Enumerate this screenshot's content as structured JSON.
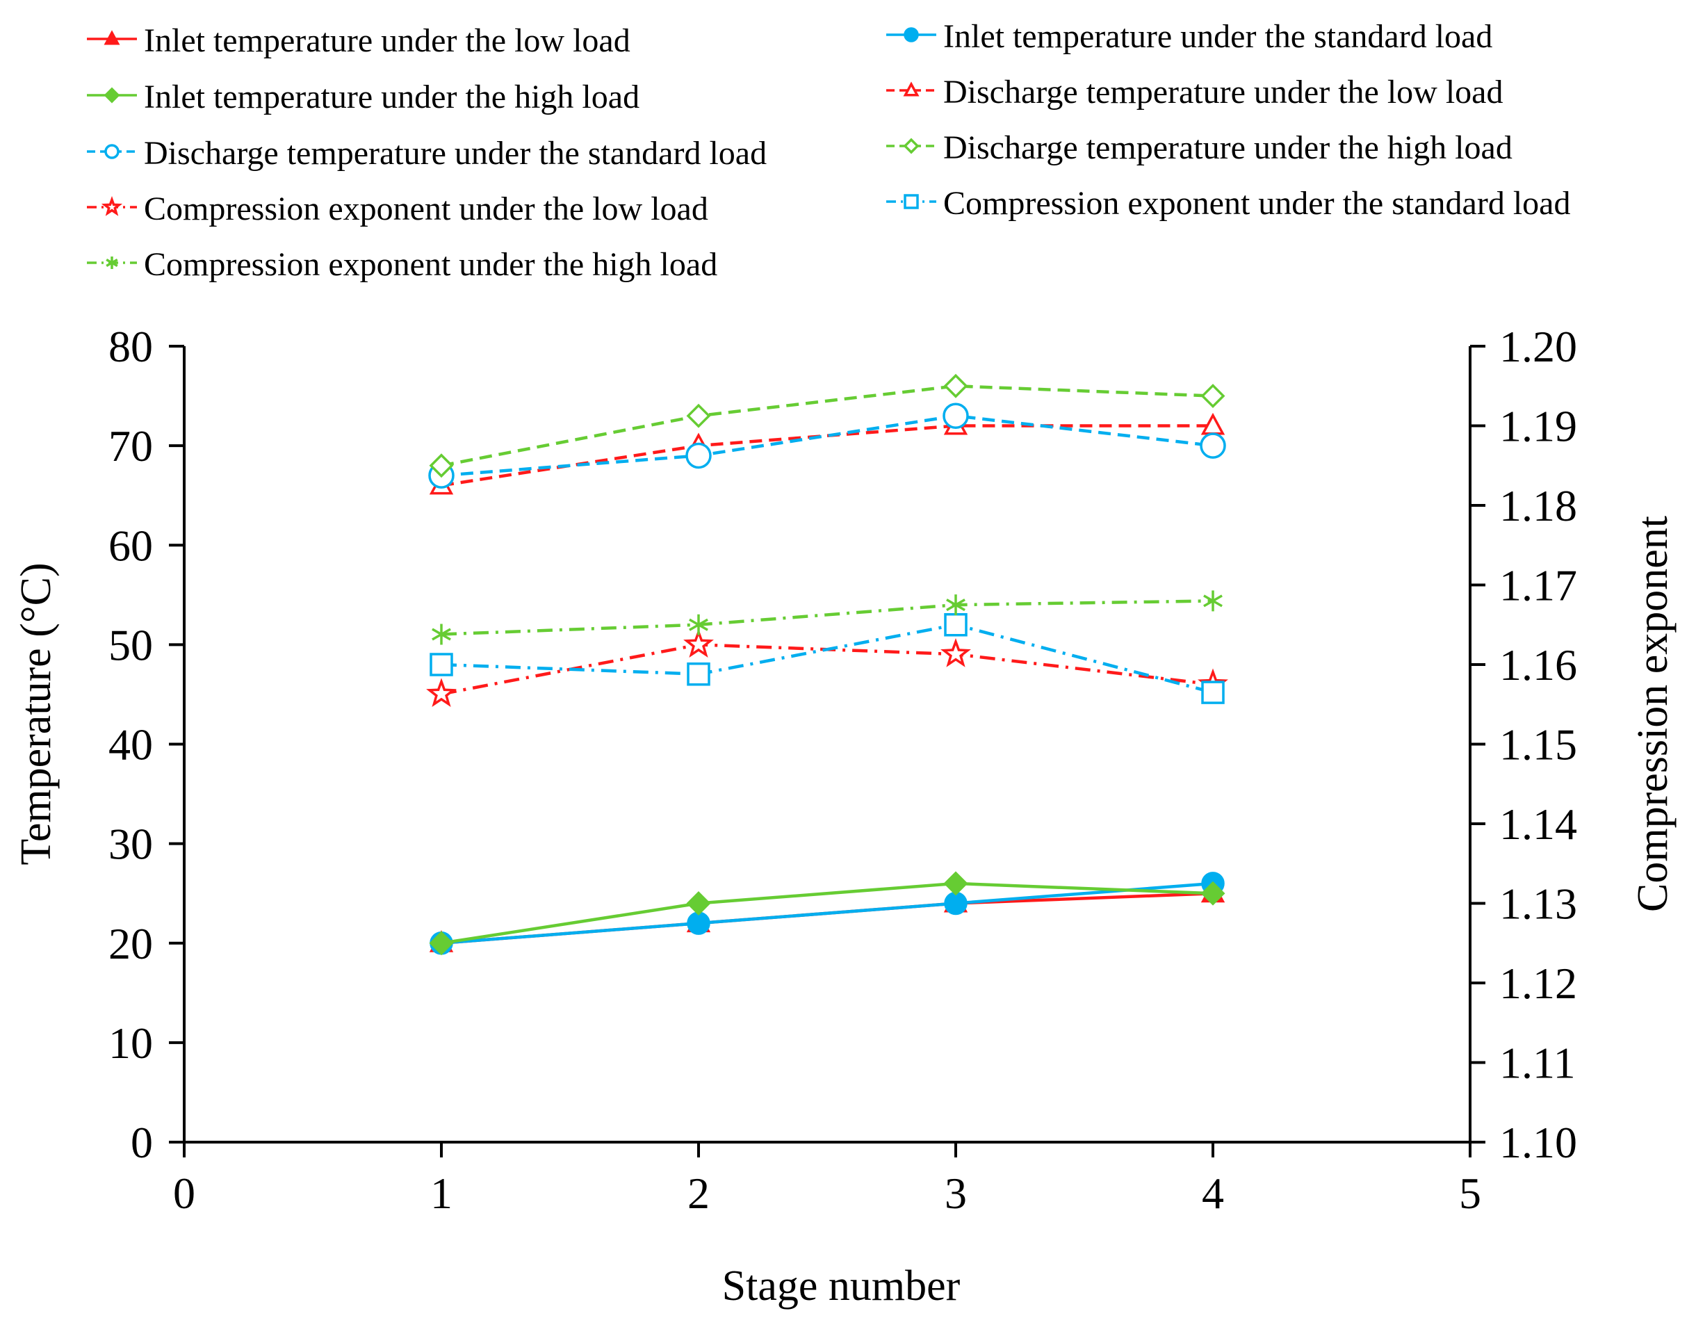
{
  "chart_data": {
    "type": "line",
    "title": "",
    "xlabel": "Stage number",
    "ylabel": "Temperature (°C)",
    "y2label": "Compression exponent",
    "xlim": [
      0,
      5
    ],
    "ylim": [
      0,
      80
    ],
    "y2lim": [
      1.1,
      1.2
    ],
    "x_ticks": [
      0,
      1,
      2,
      3,
      4,
      5
    ],
    "y_ticks": [
      0,
      10,
      20,
      30,
      40,
      50,
      60,
      70,
      80
    ],
    "y2_ticks": [
      "1.10",
      "1.11",
      "1.12",
      "1.13",
      "1.14",
      "1.15",
      "1.16",
      "1.17",
      "1.18",
      "1.19",
      "1.20"
    ],
    "grid": false,
    "legend_position": "top",
    "x": [
      1,
      2,
      3,
      4
    ],
    "series": [
      {
        "name": "Inlet temperature under the low load",
        "axis": "left",
        "color": "#ff1a1a",
        "dash": "solid",
        "marker": "triangle-filled",
        "values": [
          20,
          22,
          24,
          25
        ]
      },
      {
        "name": "Inlet temperature under the standard load",
        "axis": "left",
        "color": "#00aeef",
        "dash": "solid",
        "marker": "circle-filled",
        "values": [
          20,
          22,
          24,
          26
        ]
      },
      {
        "name": "Inlet temperature under the high load",
        "axis": "left",
        "color": "#66cc33",
        "dash": "solid",
        "marker": "diamond-filled",
        "values": [
          20,
          24,
          26,
          25
        ]
      },
      {
        "name": "Discharge temperature under the low load",
        "axis": "left",
        "color": "#ff1a1a",
        "dash": "dashed",
        "marker": "triangle-open",
        "values": [
          66,
          70,
          72,
          72
        ]
      },
      {
        "name": "Discharge temperature under the standard load",
        "axis": "left",
        "color": "#00aeef",
        "dash": "dashed",
        "marker": "circle-open",
        "values": [
          67,
          69,
          73,
          70
        ]
      },
      {
        "name": "Discharge temperature under the high load",
        "axis": "left",
        "color": "#66cc33",
        "dash": "dashed",
        "marker": "diamond-open",
        "values": [
          68,
          73,
          76,
          75
        ]
      },
      {
        "name": "Compression exponent under the low load",
        "axis": "right",
        "color": "#ff1a1a",
        "dash": "dashdot",
        "marker": "star-open",
        "values": [
          1.1563,
          1.1625,
          1.1613,
          1.1575
        ]
      },
      {
        "name": "Compression exponent under the standard load",
        "axis": "right",
        "color": "#00aeef",
        "dash": "dashdot",
        "marker": "square-open",
        "values": [
          1.16,
          1.1588,
          1.165,
          1.1565
        ]
      },
      {
        "name": "Compression exponent under the high load",
        "axis": "right",
        "color": "#66cc33",
        "dash": "dashdot",
        "marker": "asterisk",
        "values": [
          1.1638,
          1.165,
          1.1675,
          1.168
        ]
      }
    ]
  }
}
